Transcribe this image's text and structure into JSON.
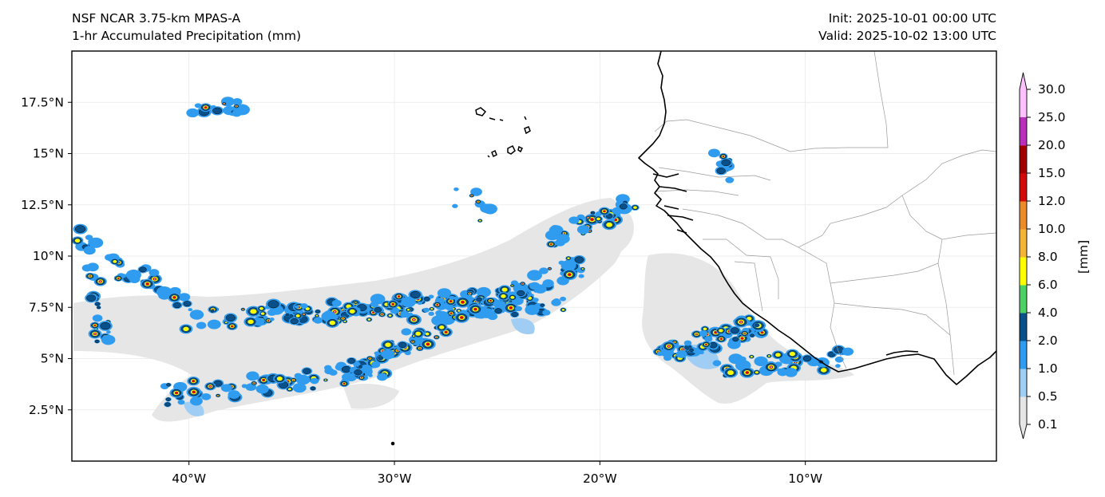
{
  "header": {
    "model": "NSF NCAR 3.75-km MPAS-A",
    "field": "1-hr Accumulated Precipitation (mm)",
    "init": "Init: 2025-10-01 00:00 UTC",
    "valid": "Valid: 2025-10-02 13:00 UTC"
  },
  "axes": {
    "lat_labels": [
      "17.5°N",
      "15°N",
      "12.5°N",
      "10°N",
      "7.5°N",
      "5°N",
      "2.5°N"
    ],
    "lat_values": [
      17.5,
      15,
      12.5,
      10,
      7.5,
      5,
      2.5
    ],
    "lon_labels": [
      "40°W",
      "30°W",
      "20°W",
      "10°W"
    ],
    "lon_values": [
      -40,
      -30,
      -20,
      -10
    ],
    "lon_range": [
      -45.7,
      -0.7
    ],
    "lat_range": [
      0,
      20
    ],
    "grid": true
  },
  "colorbar": {
    "unit_label": "[mm]",
    "levels": [
      "0.1",
      "0.5",
      "1.0",
      "2.0",
      "4.0",
      "6.0",
      "8.0",
      "10.0",
      "12.0",
      "15.0",
      "20.0",
      "25.0",
      "30.0"
    ],
    "colors": [
      "#e6e6e6",
      "#9fcdf4",
      "#2f9cf0",
      "#07508a",
      "#4cd264",
      "#ffff00",
      "#f4b536",
      "#ea8c2a",
      "#d20a0a",
      "#a00000",
      "#b92fb9",
      "#fdc1fd"
    ],
    "extend": "both"
  },
  "map": {
    "features": [
      "coastline",
      "country-borders",
      "cabo-verde-islands"
    ],
    "precip_regions": [
      "itcz-western-band",
      "itcz-central-band",
      "southern-band",
      "gulf-of-guinea-cluster",
      "senegal-cell",
      "northwest-cluster"
    ]
  }
}
